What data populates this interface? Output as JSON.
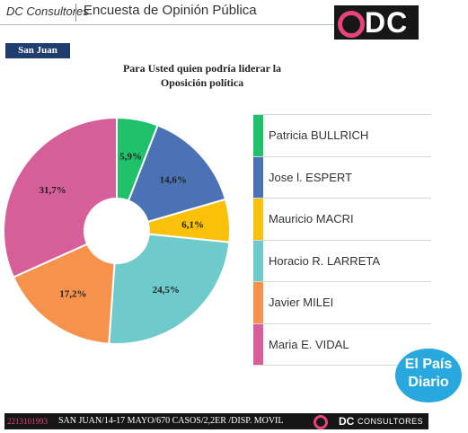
{
  "header": {
    "brand": "DC Consultores",
    "survey_title": "Encuesta de Opinión Pública",
    "logo_text": "DC"
  },
  "region": "San Juan",
  "chart_data": {
    "type": "pie",
    "variant": "donut",
    "title": [
      "Para Usted quien podría liderar la",
      "Oposición política"
    ],
    "categories": [
      "Patricia BULLRICH",
      "Jose l. ESPERT",
      "Mauricio MACRI",
      "Horacio R. LARRETA",
      "Javier MILEI",
      "Maria E. VIDAL"
    ],
    "values": [
      5.9,
      14.6,
      6.1,
      24.5,
      17.2,
      31.7
    ],
    "labels": [
      "5,9%",
      "14,6%",
      "6,1%",
      "24,5%",
      "17,2%",
      "31,7%"
    ],
    "colors": [
      "#1fc26b",
      "#4a72b4",
      "#f9c10a",
      "#6fcacb",
      "#f6924c",
      "#d65f99"
    ],
    "legend_position": "right"
  },
  "badge": {
    "line1": "El País",
    "line2": "Diario"
  },
  "footer": {
    "code": "2213101993",
    "info": "SAN JUAN/14-17 MAYO/670 CASOS/2,2ER /DISP. MOVIL",
    "logo_text": "DC",
    "company": "CONSULTORES"
  }
}
